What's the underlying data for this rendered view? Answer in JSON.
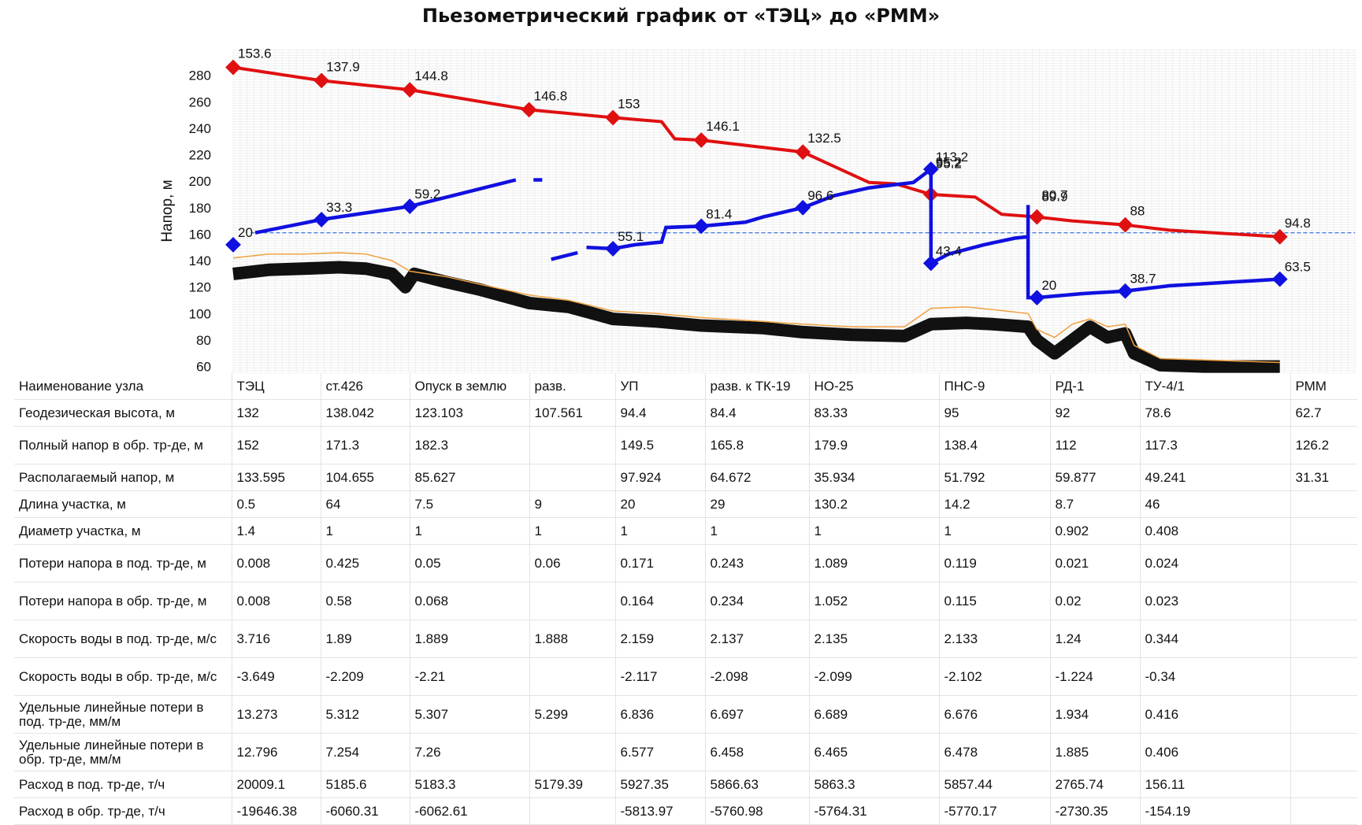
{
  "chart_data": {
    "type": "line",
    "title": "Пьезометрический график от «ТЭЦ» до «РММ»",
    "ylabel": "Напор, м",
    "ylim": [
      55,
      300
    ],
    "yticks": [
      60,
      80,
      100,
      120,
      140,
      160,
      180,
      200,
      220,
      240,
      260,
      280
    ],
    "node_positions": [
      0,
      1,
      2,
      3.35,
      4.3,
      5.3,
      6.45,
      7.9,
      9.1,
      10.1,
      11.85
    ],
    "x_end": 12.7,
    "reference_line": 161,
    "series": [
      {
        "role": "supply",
        "color": "#e01010",
        "points": [
          [
            0,
            286
          ],
          [
            1,
            276
          ],
          [
            2,
            269
          ],
          [
            3.35,
            254
          ],
          [
            4.3,
            248
          ],
          [
            4.85,
            245
          ],
          [
            5.0,
            232
          ],
          [
            5.3,
            231
          ],
          [
            6.45,
            222
          ],
          [
            7.2,
            199
          ],
          [
            7.5,
            198
          ],
          [
            7.9,
            190
          ],
          [
            8.4,
            188
          ],
          [
            8.7,
            175
          ],
          [
            9.1,
            173
          ],
          [
            9.5,
            170
          ],
          [
            10.1,
            167
          ],
          [
            10.6,
            163
          ],
          [
            11.85,
            158
          ]
        ],
        "marker_x": [
          0,
          1,
          2,
          3.35,
          4.3,
          5.3,
          6.45,
          7.9,
          9.1,
          10.1,
          11.85
        ],
        "labels": [
          {
            "x": 0,
            "y": 286,
            "text": "153.6"
          },
          {
            "x": 1,
            "y": 276,
            "text": "137.9"
          },
          {
            "x": 2,
            "y": 269,
            "text": "144.8"
          },
          {
            "x": 3.35,
            "y": 254,
            "text": "146.8"
          },
          {
            "x": 4.3,
            "y": 248,
            "text": "153"
          },
          {
            "x": 5.3,
            "y": 231,
            "text": "146.1"
          },
          {
            "x": 6.45,
            "y": 222,
            "text": "132.5"
          },
          {
            "x": 7.9,
            "y": 204,
            "text": "95.2"
          },
          {
            "x": 9.1,
            "y": 179,
            "text": "80.7"
          },
          {
            "x": 10.1,
            "y": 167,
            "text": "88"
          },
          {
            "x": 11.85,
            "y": 158,
            "text": "94.8"
          }
        ]
      },
      {
        "role": "return",
        "color": "#1010e0",
        "segments": [
          [
            [
              0,
              152
            ]
          ],
          [
            [
              0.25,
              161
            ],
            [
              1,
              171
            ],
            [
              2,
              181
            ],
            [
              2.6,
              191
            ],
            [
              3.2,
              201
            ]
          ],
          [
            [
              3.4,
              201
            ],
            [
              3.5,
              201
            ]
          ],
          [
            [
              3.6,
              141
            ],
            [
              3.9,
              146
            ]
          ],
          [
            [
              4.0,
              150
            ],
            [
              4.3,
              149
            ],
            [
              4.55,
              152
            ],
            [
              4.85,
              154
            ],
            [
              4.9,
              165
            ],
            [
              5.3,
              166
            ],
            [
              5.8,
              169
            ],
            [
              6.0,
              173
            ],
            [
              6.45,
              180
            ],
            [
              6.8,
              189
            ],
            [
              7.2,
              195
            ],
            [
              7.7,
              199
            ],
            [
              7.9,
              209
            ],
            [
              7.9,
              138
            ],
            [
              8.1,
              145
            ],
            [
              8.5,
              152
            ],
            [
              8.85,
              157
            ],
            [
              9.0,
              158
            ],
            [
              9.0,
              182
            ],
            [
              9.0,
              112
            ],
            [
              9.1,
              112
            ],
            [
              9.6,
              115
            ],
            [
              10.1,
              117
            ],
            [
              10.6,
              121
            ],
            [
              11.85,
              126
            ]
          ]
        ],
        "markers": [
          [
            0,
            152
          ],
          [
            1,
            171
          ],
          [
            2,
            181
          ],
          [
            4.3,
            149
          ],
          [
            5.3,
            166
          ],
          [
            6.45,
            180
          ],
          [
            7.9,
            209
          ],
          [
            7.9,
            138
          ],
          [
            9.1,
            112
          ],
          [
            10.1,
            117
          ],
          [
            11.85,
            126
          ]
        ],
        "labels": [
          {
            "x": 0,
            "y": 152,
            "text": "20"
          },
          {
            "x": 1,
            "y": 171,
            "text": "33.3"
          },
          {
            "x": 2,
            "y": 181,
            "text": "59.2"
          },
          {
            "x": 4.3,
            "y": 149,
            "text": "55.1"
          },
          {
            "x": 5.3,
            "y": 166,
            "text": "81.4"
          },
          {
            "x": 6.45,
            "y": 180,
            "text": "96.6"
          },
          {
            "x": 7.9,
            "y": 209,
            "text": "113.2"
          },
          {
            "x": 7.9,
            "y": 204,
            "text": "95.2"
          },
          {
            "x": 7.9,
            "y": 138,
            "text": "43.4"
          },
          {
            "x": 9.1,
            "y": 179,
            "text": "89.9"
          },
          {
            "x": 9.1,
            "y": 112,
            "text": "20"
          },
          {
            "x": 10.1,
            "y": 117,
            "text": "38.7"
          },
          {
            "x": 11.85,
            "y": 126,
            "text": "63.5"
          }
        ]
      },
      {
        "role": "terrain",
        "color": "#111111",
        "points": [
          [
            0,
            130
          ],
          [
            0.4,
            133
          ],
          [
            0.8,
            134
          ],
          [
            1.2,
            135
          ],
          [
            1.5,
            134
          ],
          [
            1.8,
            130
          ],
          [
            1.95,
            120
          ],
          [
            2.05,
            130
          ],
          [
            2.4,
            124
          ],
          [
            2.8,
            118
          ],
          [
            3.35,
            108
          ],
          [
            3.8,
            105
          ],
          [
            4.3,
            96
          ],
          [
            4.8,
            94
          ],
          [
            5.3,
            91
          ],
          [
            6.0,
            89
          ],
          [
            6.45,
            86
          ],
          [
            7.0,
            84
          ],
          [
            7.6,
            83
          ],
          [
            7.9,
            92
          ],
          [
            8.3,
            93
          ],
          [
            8.6,
            92
          ],
          [
            9.0,
            90
          ],
          [
            9.1,
            80
          ],
          [
            9.3,
            70
          ],
          [
            9.5,
            80
          ],
          [
            9.7,
            90
          ],
          [
            9.9,
            82
          ],
          [
            10.1,
            85
          ],
          [
            10.2,
            70
          ],
          [
            10.5,
            61
          ],
          [
            11.0,
            60
          ],
          [
            11.85,
            60
          ]
        ]
      },
      {
        "role": "terrain-upper",
        "color": "#f0a040",
        "points": [
          [
            0,
            142
          ],
          [
            0.4,
            145
          ],
          [
            0.8,
            145
          ],
          [
            1.2,
            146
          ],
          [
            1.5,
            145
          ],
          [
            1.8,
            140
          ],
          [
            2.0,
            132
          ],
          [
            2.4,
            128
          ],
          [
            2.8,
            122
          ],
          [
            3.35,
            114
          ],
          [
            3.8,
            110
          ],
          [
            4.3,
            102
          ],
          [
            4.8,
            100
          ],
          [
            5.3,
            97
          ],
          [
            6.0,
            94
          ],
          [
            6.45,
            92
          ],
          [
            7.0,
            90
          ],
          [
            7.6,
            90
          ],
          [
            7.9,
            104
          ],
          [
            8.3,
            105
          ],
          [
            8.6,
            103
          ],
          [
            9.0,
            100
          ],
          [
            9.1,
            88
          ],
          [
            9.3,
            82
          ],
          [
            9.5,
            92
          ],
          [
            9.7,
            96
          ],
          [
            9.9,
            90
          ],
          [
            10.1,
            92
          ],
          [
            10.2,
            76
          ],
          [
            10.5,
            66
          ],
          [
            11.0,
            65
          ],
          [
            11.85,
            63
          ]
        ]
      }
    ]
  },
  "table": {
    "nodes": [
      "ТЭЦ",
      "ст.426",
      "Опуск в землю",
      "разв.",
      "УП",
      "разв. к ТК-19",
      "НО-25",
      "ПНС-9",
      "РД-1",
      "ТУ-4/1",
      "РММ"
    ],
    "rows": [
      {
        "label": "Наименование узла",
        "values": [
          "ТЭЦ",
          "ст.426",
          "Опуск в землю",
          "разв.",
          "УП",
          "разв. к ТК-19",
          "НО-25",
          "ПНС-9",
          "РД-1",
          "ТУ-4/1",
          "РММ"
        ]
      },
      {
        "label": "Геодезическая высота, м",
        "values": [
          "132",
          "138.042",
          "123.103",
          "107.561",
          "94.4",
          "84.4",
          "83.33",
          "95",
          "92",
          "78.6",
          "62.7"
        ]
      },
      {
        "label": "Полный напор в обр. тр-де, м",
        "values": [
          "152",
          "171.3",
          "182.3",
          "",
          "149.5",
          "165.8",
          "179.9",
          "138.4",
          "112",
          "117.3",
          "126.2"
        ]
      },
      {
        "label": "Располагаемый напор, м",
        "values": [
          "133.595",
          "104.655",
          "85.627",
          "",
          "97.924",
          "64.672",
          "35.934",
          "51.792",
          "59.877",
          "49.241",
          "31.31"
        ]
      },
      {
        "label": "Длина участка, м",
        "values": [
          "0.5",
          "64",
          "7.5",
          "9",
          "20",
          "29",
          "130.2",
          "14.2",
          "8.7",
          "46",
          ""
        ]
      },
      {
        "label": "Диаметр участка, м",
        "values": [
          "1.4",
          "1",
          "1",
          "1",
          "1",
          "1",
          "1",
          "1",
          "0.902",
          "0.408",
          ""
        ]
      },
      {
        "label": "Потери напора в под. тр-де, м",
        "values": [
          "0.008",
          "0.425",
          "0.05",
          "0.06",
          "0.171",
          "0.243",
          "1.089",
          "0.119",
          "0.021",
          "0.024",
          ""
        ]
      },
      {
        "label": "Потери напора в обр. тр-де, м",
        "values": [
          "0.008",
          "0.58",
          "0.068",
          "",
          "0.164",
          "0.234",
          "1.052",
          "0.115",
          "0.02",
          "0.023",
          ""
        ]
      },
      {
        "label": "Скорость воды в под. тр-де, м/с",
        "values": [
          "3.716",
          "1.89",
          "1.889",
          "1.888",
          "2.159",
          "2.137",
          "2.135",
          "2.133",
          "1.24",
          "0.344",
          ""
        ]
      },
      {
        "label": "Скорость воды в обр. тр-де, м/с",
        "values": [
          "-3.649",
          "-2.209",
          "-2.21",
          "",
          "-2.117",
          "-2.098",
          "-2.099",
          "-2.102",
          "-1.224",
          "-0.34",
          ""
        ]
      },
      {
        "label": "Удельные линейные потери в под. тр-де, мм/м",
        "values": [
          "13.273",
          "5.312",
          "5.307",
          "5.299",
          "6.836",
          "6.697",
          "6.689",
          "6.676",
          "1.934",
          "0.416",
          ""
        ]
      },
      {
        "label": "Удельные линейные потери в обр. тр-де, мм/м",
        "values": [
          "12.796",
          "7.254",
          "7.26",
          "",
          "6.577",
          "6.458",
          "6.465",
          "6.478",
          "1.885",
          "0.406",
          ""
        ]
      },
      {
        "label": "Расход в под. тр-де, т/ч",
        "values": [
          "20009.1",
          "5185.6",
          "5183.3",
          "5179.39",
          "5927.35",
          "5866.63",
          "5863.3",
          "5857.44",
          "2765.74",
          "156.11",
          ""
        ]
      },
      {
        "label": "Расход в обр. тр-де, т/ч",
        "values": [
          "-19646.38",
          "-6060.31",
          "-6062.61",
          "",
          "-5813.97",
          "-5760.98",
          "-5764.31",
          "-5770.17",
          "-2730.35",
          "-154.19",
          ""
        ]
      }
    ]
  }
}
